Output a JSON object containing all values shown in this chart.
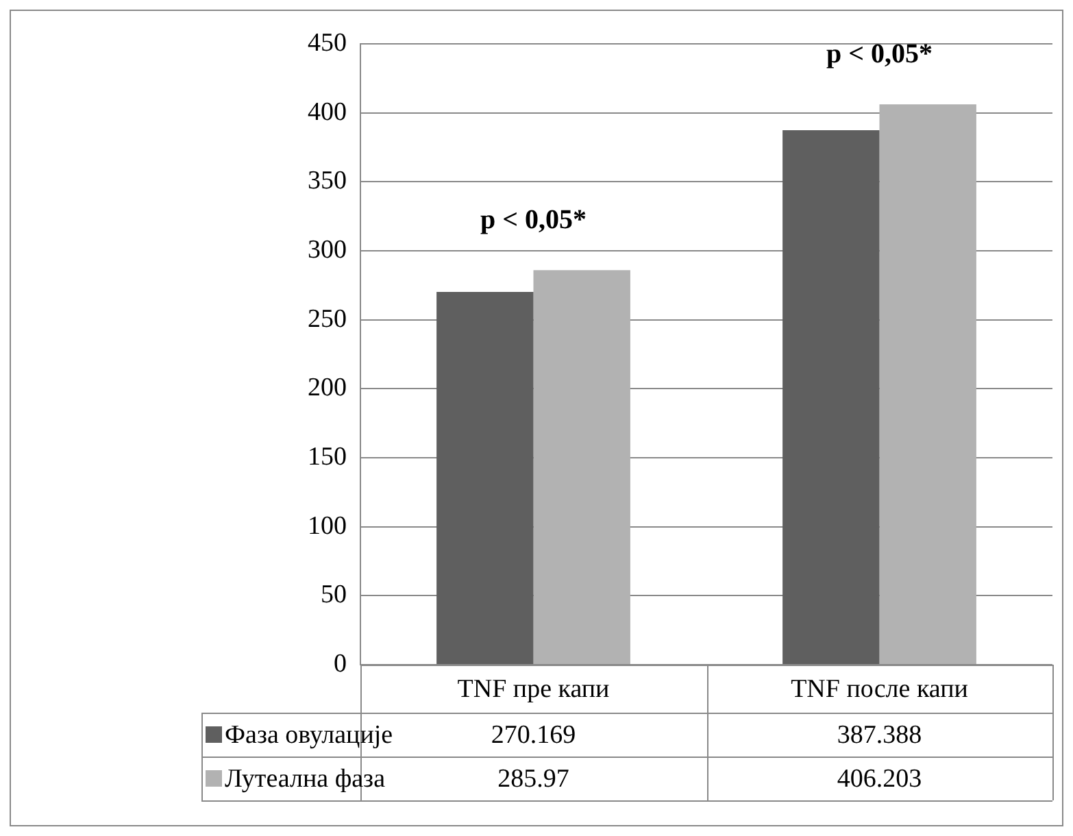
{
  "chart_data": {
    "type": "bar",
    "categories": [
      "TNF пре капи",
      "TNF после капи"
    ],
    "series": [
      {
        "name": "Фаза овулације",
        "color": "#5f5f5f",
        "values": [
          270.169,
          387.388
        ]
      },
      {
        "name": "Лутеална фаза",
        "color": "#b2b2b2",
        "values": [
          285.97,
          406.203
        ]
      }
    ],
    "ylim": [
      0,
      450
    ],
    "yticks": [
      0,
      50,
      100,
      150,
      200,
      250,
      300,
      350,
      400,
      450
    ],
    "grid": "y",
    "legend": "bottom",
    "data_labels": true,
    "annotations": [
      "p < 0,05*",
      "p < 0,05*"
    ]
  }
}
